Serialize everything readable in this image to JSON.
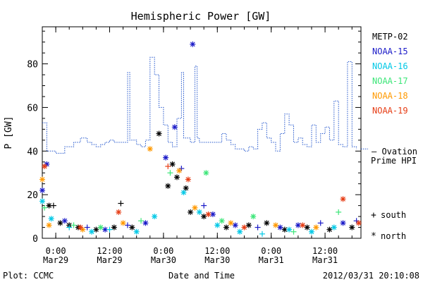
{
  "chart_data": {
    "type": "scatter",
    "title": "Hemispheric Power [GW]",
    "xlabel": "Date and Time",
    "ylabel": "P [GW]",
    "ylim": [
      0,
      97
    ],
    "yticks": [
      0,
      20,
      40,
      60,
      80
    ],
    "xlim": [
      "2012-03-28T21:00",
      "2012-03-31T20:00"
    ],
    "xticks": [
      {
        "t": "2012-03-29T00:00",
        "time": "0:00",
        "date": "Mar29"
      },
      {
        "t": "2012-03-29T12:00",
        "time": "12:00",
        "date": "Mar29"
      },
      {
        "t": "2012-03-30T00:00",
        "time": "0:00",
        "date": "Mar30"
      },
      {
        "t": "2012-03-30T12:00",
        "time": "12:00",
        "date": "Mar30"
      },
      {
        "t": "2012-03-31T00:00",
        "time": "0:00",
        "date": "Mar31"
      },
      {
        "t": "2012-03-31T12:00",
        "time": "12:00",
        "date": "Mar31"
      }
    ],
    "legend_placement": "right",
    "satellites": [
      {
        "name": "METP-02",
        "color": "#000000"
      },
      {
        "name": "NOAA-15",
        "color": "#1a1ac8"
      },
      {
        "name": "NOAA-16",
        "color": "#00c8e6"
      },
      {
        "name": "NOAA-17",
        "color": "#3ce678"
      },
      {
        "name": "NOAA-18",
        "color": "#ff9900"
      },
      {
        "name": "NOAA-19",
        "color": "#e63c14"
      }
    ],
    "ovation": {
      "label_line1": "— Ovation",
      "label_line2": "Prime HPI",
      "color": "#2255cc",
      "points": [
        [
          "2012-03-28T21:00",
          53
        ],
        [
          "2012-03-28T22:00",
          40
        ],
        [
          "2012-03-29T00:00",
          39
        ],
        [
          "2012-03-29T01:00",
          39
        ],
        [
          "2012-03-29T02:00",
          42
        ],
        [
          "2012-03-29T04:00",
          44
        ],
        [
          "2012-03-29T05:30",
          46
        ],
        [
          "2012-03-29T07:00",
          44
        ],
        [
          "2012-03-29T08:00",
          43
        ],
        [
          "2012-03-29T09:00",
          42
        ],
        [
          "2012-03-29T10:00",
          43
        ],
        [
          "2012-03-29T11:00",
          44
        ],
        [
          "2012-03-29T12:00",
          45
        ],
        [
          "2012-03-29T13:00",
          44
        ],
        [
          "2012-03-29T15:00",
          44
        ],
        [
          "2012-03-29T16:00",
          76
        ],
        [
          "2012-03-29T16:30",
          45
        ],
        [
          "2012-03-29T17:00",
          45
        ],
        [
          "2012-03-29T18:00",
          43
        ],
        [
          "2012-03-29T19:00",
          42
        ],
        [
          "2012-03-29T20:00",
          45
        ],
        [
          "2012-03-29T21:00",
          83
        ],
        [
          "2012-03-29T22:00",
          75
        ],
        [
          "2012-03-29T23:00",
          60
        ],
        [
          "2012-03-30T00:00",
          52
        ],
        [
          "2012-03-30T01:00",
          44
        ],
        [
          "2012-03-30T02:00",
          42
        ],
        [
          "2012-03-30T03:00",
          55
        ],
        [
          "2012-03-30T04:00",
          76
        ],
        [
          "2012-03-30T04:30",
          46
        ],
        [
          "2012-03-30T06:00",
          44
        ],
        [
          "2012-03-30T07:00",
          79
        ],
        [
          "2012-03-30T07:30",
          46
        ],
        [
          "2012-03-30T08:00",
          44
        ],
        [
          "2012-03-30T12:00",
          44
        ],
        [
          "2012-03-30T13:00",
          48
        ],
        [
          "2012-03-30T14:00",
          45
        ],
        [
          "2012-03-30T15:00",
          43
        ],
        [
          "2012-03-30T16:00",
          41
        ],
        [
          "2012-03-30T18:00",
          40
        ],
        [
          "2012-03-30T19:00",
          42
        ],
        [
          "2012-03-30T20:00",
          41
        ],
        [
          "2012-03-30T21:00",
          50
        ],
        [
          "2012-03-30T22:00",
          53
        ],
        [
          "2012-03-30T23:00",
          46
        ],
        [
          "2012-03-31T00:00",
          44
        ],
        [
          "2012-03-31T01:00",
          40
        ],
        [
          "2012-03-31T02:00",
          48
        ],
        [
          "2012-03-31T03:00",
          57
        ],
        [
          "2012-03-31T04:00",
          52
        ],
        [
          "2012-03-31T05:00",
          44
        ],
        [
          "2012-03-31T06:00",
          46
        ],
        [
          "2012-03-31T07:00",
          43
        ],
        [
          "2012-03-31T08:00",
          42
        ],
        [
          "2012-03-31T09:00",
          52
        ],
        [
          "2012-03-31T10:00",
          44
        ],
        [
          "2012-03-31T11:00",
          48
        ],
        [
          "2012-03-31T12:00",
          51
        ],
        [
          "2012-03-31T13:00",
          45
        ],
        [
          "2012-03-31T14:00",
          63
        ],
        [
          "2012-03-31T15:00",
          43
        ],
        [
          "2012-03-31T16:00",
          42
        ],
        [
          "2012-03-31T17:00",
          81
        ],
        [
          "2012-03-31T18:00",
          42
        ],
        [
          "2012-03-31T19:00",
          41
        ]
      ]
    },
    "marker_legend": [
      {
        "symbol": "+",
        "label": "south"
      },
      {
        "symbol": "*",
        "label": "north"
      }
    ],
    "series": [
      {
        "name": "METP-02",
        "points": [
          [
            "2012-03-28T22:30",
            15,
            "*"
          ],
          [
            "2012-03-28T23:30",
            15,
            "+"
          ],
          [
            "2012-03-29T01:00",
            7,
            "*"
          ],
          [
            "2012-03-29T03:00",
            6,
            "*"
          ],
          [
            "2012-03-29T05:00",
            5,
            "*"
          ],
          [
            "2012-03-29T09:00",
            4,
            "*"
          ],
          [
            "2012-03-29T13:00",
            5,
            "*"
          ],
          [
            "2012-03-29T14:30",
            16,
            "+"
          ],
          [
            "2012-03-29T17:00",
            5,
            "*"
          ],
          [
            "2012-03-29T23:00",
            48,
            "*"
          ],
          [
            "2012-03-30T01:00",
            24,
            "*"
          ],
          [
            "2012-03-30T02:00",
            34,
            "*"
          ],
          [
            "2012-03-30T03:00",
            28,
            "*"
          ],
          [
            "2012-03-30T05:00",
            23,
            "*"
          ],
          [
            "2012-03-30T06:00",
            12,
            "*"
          ],
          [
            "2012-03-30T09:00",
            10,
            "*"
          ],
          [
            "2012-03-30T14:00",
            5,
            "*"
          ],
          [
            "2012-03-30T19:00",
            6,
            "*"
          ],
          [
            "2012-03-30T23:00",
            7,
            "*"
          ],
          [
            "2012-03-31T03:00",
            4,
            "*"
          ],
          [
            "2012-03-31T08:00",
            5,
            "*"
          ],
          [
            "2012-03-31T13:00",
            4,
            "*"
          ],
          [
            "2012-03-31T18:00",
            5,
            "*"
          ]
        ]
      },
      {
        "name": "NOAA-15",
        "points": [
          [
            "2012-03-28T21:00",
            22,
            "*"
          ],
          [
            "2012-03-28T22:00",
            34,
            "*"
          ],
          [
            "2012-03-29T02:00",
            8,
            "*"
          ],
          [
            "2012-03-29T07:00",
            5,
            "+"
          ],
          [
            "2012-03-29T11:00",
            4,
            "*"
          ],
          [
            "2012-03-29T16:00",
            6,
            "+"
          ],
          [
            "2012-03-29T20:00",
            7,
            "*"
          ],
          [
            "2012-03-30T00:30",
            37,
            "*"
          ],
          [
            "2012-03-30T02:30",
            51,
            "*"
          ],
          [
            "2012-03-30T04:00",
            32,
            "+"
          ],
          [
            "2012-03-30T06:30",
            89,
            "*"
          ],
          [
            "2012-03-30T09:00",
            15,
            "+"
          ],
          [
            "2012-03-30T11:00",
            11,
            "*"
          ],
          [
            "2012-03-30T16:00",
            6,
            "*"
          ],
          [
            "2012-03-30T21:00",
            5,
            "+"
          ],
          [
            "2012-03-31T02:00",
            5,
            "*"
          ],
          [
            "2012-03-31T06:00",
            6,
            "*"
          ],
          [
            "2012-03-31T11:00",
            7,
            "+"
          ],
          [
            "2012-03-31T16:00",
            7,
            "*"
          ],
          [
            "2012-03-31T19:00",
            8,
            "+"
          ]
        ]
      },
      {
        "name": "NOAA-16",
        "points": [
          [
            "2012-03-28T21:00",
            17,
            "*"
          ],
          [
            "2012-03-28T23:00",
            9,
            "*"
          ],
          [
            "2012-03-29T03:00",
            5,
            "+"
          ],
          [
            "2012-03-29T08:00",
            3,
            "*"
          ],
          [
            "2012-03-29T12:00",
            4,
            "+"
          ],
          [
            "2012-03-29T18:00",
            3,
            "*"
          ],
          [
            "2012-03-29T22:00",
            10,
            "*"
          ],
          [
            "2012-03-30T04:30",
            21,
            "*"
          ],
          [
            "2012-03-30T08:00",
            12,
            "*"
          ],
          [
            "2012-03-30T12:00",
            6,
            "*"
          ],
          [
            "2012-03-30T17:00",
            3,
            "*"
          ],
          [
            "2012-03-30T22:00",
            2,
            "+"
          ],
          [
            "2012-03-31T04:00",
            4,
            "*"
          ],
          [
            "2012-03-31T09:00",
            3,
            "*"
          ],
          [
            "2012-03-31T14:00",
            5,
            "*"
          ]
        ]
      },
      {
        "name": "NOAA-17",
        "points": [
          [
            "2012-03-28T21:30",
            14,
            "+"
          ],
          [
            "2012-03-29T04:00",
            6,
            "+"
          ],
          [
            "2012-03-29T10:00",
            5,
            "*"
          ],
          [
            "2012-03-29T19:00",
            8,
            "+"
          ],
          [
            "2012-03-30T01:30",
            30,
            "+"
          ],
          [
            "2012-03-30T09:30",
            30,
            "*"
          ],
          [
            "2012-03-30T13:00",
            8,
            "*"
          ],
          [
            "2012-03-30T20:00",
            10,
            "*"
          ],
          [
            "2012-03-31T05:00",
            3,
            "+"
          ],
          [
            "2012-03-31T15:00",
            12,
            "+"
          ]
        ]
      },
      {
        "name": "NOAA-18",
        "points": [
          [
            "2012-03-28T21:00",
            27,
            "*"
          ],
          [
            "2012-03-28T22:30",
            6,
            "*"
          ],
          [
            "2012-03-29T06:00",
            4,
            "*"
          ],
          [
            "2012-03-29T15:00",
            7,
            "*"
          ],
          [
            "2012-03-29T21:00",
            41,
            "*"
          ],
          [
            "2012-03-30T03:30",
            31,
            "*"
          ],
          [
            "2012-03-30T07:00",
            14,
            "*"
          ],
          [
            "2012-03-30T15:00",
            7,
            "*"
          ],
          [
            "2012-03-31T01:00",
            6,
            "*"
          ],
          [
            "2012-03-31T10:00",
            5,
            "*"
          ]
        ]
      },
      {
        "name": "NOAA-18",
        "points": []
      },
      {
        "name": "NOAA-19",
        "points": [
          [
            "2012-03-28T21:30",
            33,
            "*"
          ],
          [
            "2012-03-29T05:30",
            5,
            "*"
          ],
          [
            "2012-03-29T14:00",
            12,
            "*"
          ],
          [
            "2012-03-30T01:00",
            33,
            "+"
          ],
          [
            "2012-03-30T05:30",
            27,
            "*"
          ],
          [
            "2012-03-30T10:00",
            11,
            "*"
          ],
          [
            "2012-03-30T18:00",
            5,
            "*"
          ],
          [
            "2012-03-31T07:00",
            6,
            "*"
          ],
          [
            "2012-03-31T16:00",
            18,
            "*"
          ],
          [
            "2012-03-31T19:30",
            7,
            "*"
          ]
        ]
      }
    ]
  },
  "footer": {
    "plot_credit": "Plot: CCMC",
    "timestamp": "2012/03/31  20:10:08"
  }
}
